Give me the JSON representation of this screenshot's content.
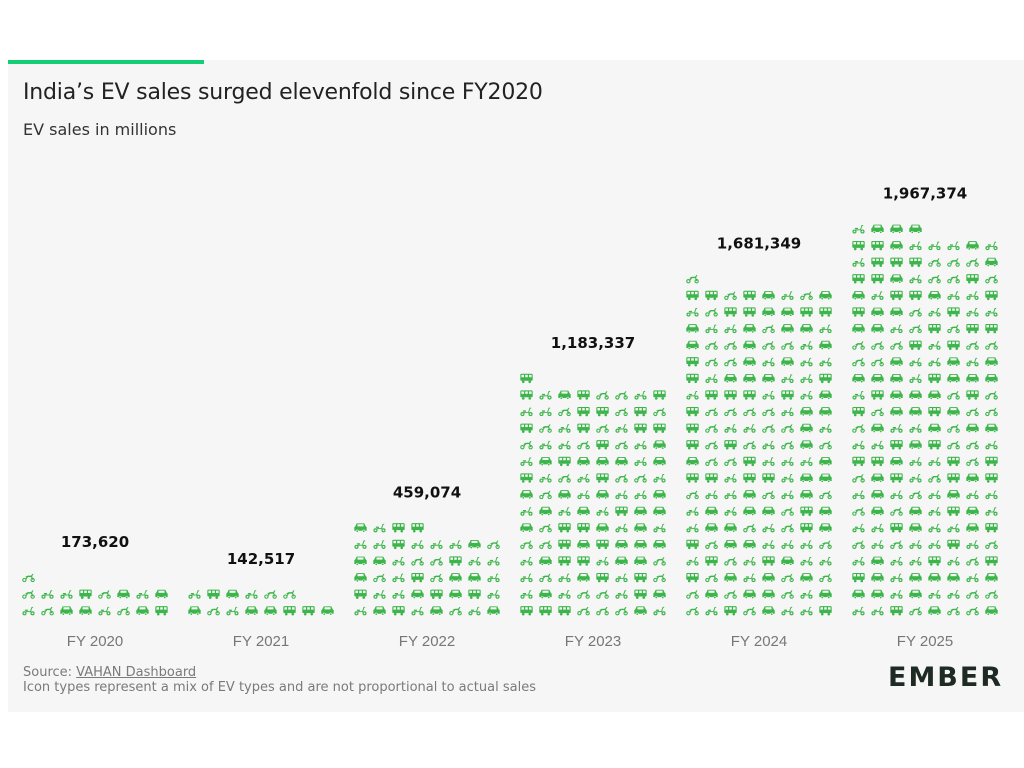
{
  "colors": {
    "background": "#f6f6f6",
    "icon": "#3cb54a",
    "accent": "#13ce74",
    "title": "#222222",
    "muted": "#7a7a7a"
  },
  "header": {
    "title": "India’s EV sales surged elevenfold since FY2020",
    "subtitle": "EV sales in millions"
  },
  "footer": {
    "source_prefix": "Source: ",
    "source_link": "VAHAN Dashboard",
    "note": "Icon types represent a mix of EV types and are not proportional to actual sales"
  },
  "logo": {
    "text": "EMBER"
  },
  "icon_types": [
    "car-icon",
    "scooter-icon",
    "motorcycle-icon",
    "bus-icon"
  ],
  "chart_data": {
    "type": "bar",
    "style": "pictogram",
    "title": "India’s EV sales surged elevenfold since FY2020",
    "subtitle": "EV sales in millions",
    "xlabel": "",
    "ylabel": "",
    "categories": [
      "FY 2020",
      "FY 2021",
      "FY 2022",
      "FY 2023",
      "FY 2024",
      "FY 2025"
    ],
    "values": [
      173620,
      142517,
      459074,
      1183337,
      1681349,
      1967374
    ],
    "value_labels": [
      "173,620",
      "142,517",
      "459,074",
      "1,183,337",
      "1,681,349",
      "1,967,374"
    ],
    "ylim": [
      0,
      2000000
    ],
    "grid": false
  }
}
